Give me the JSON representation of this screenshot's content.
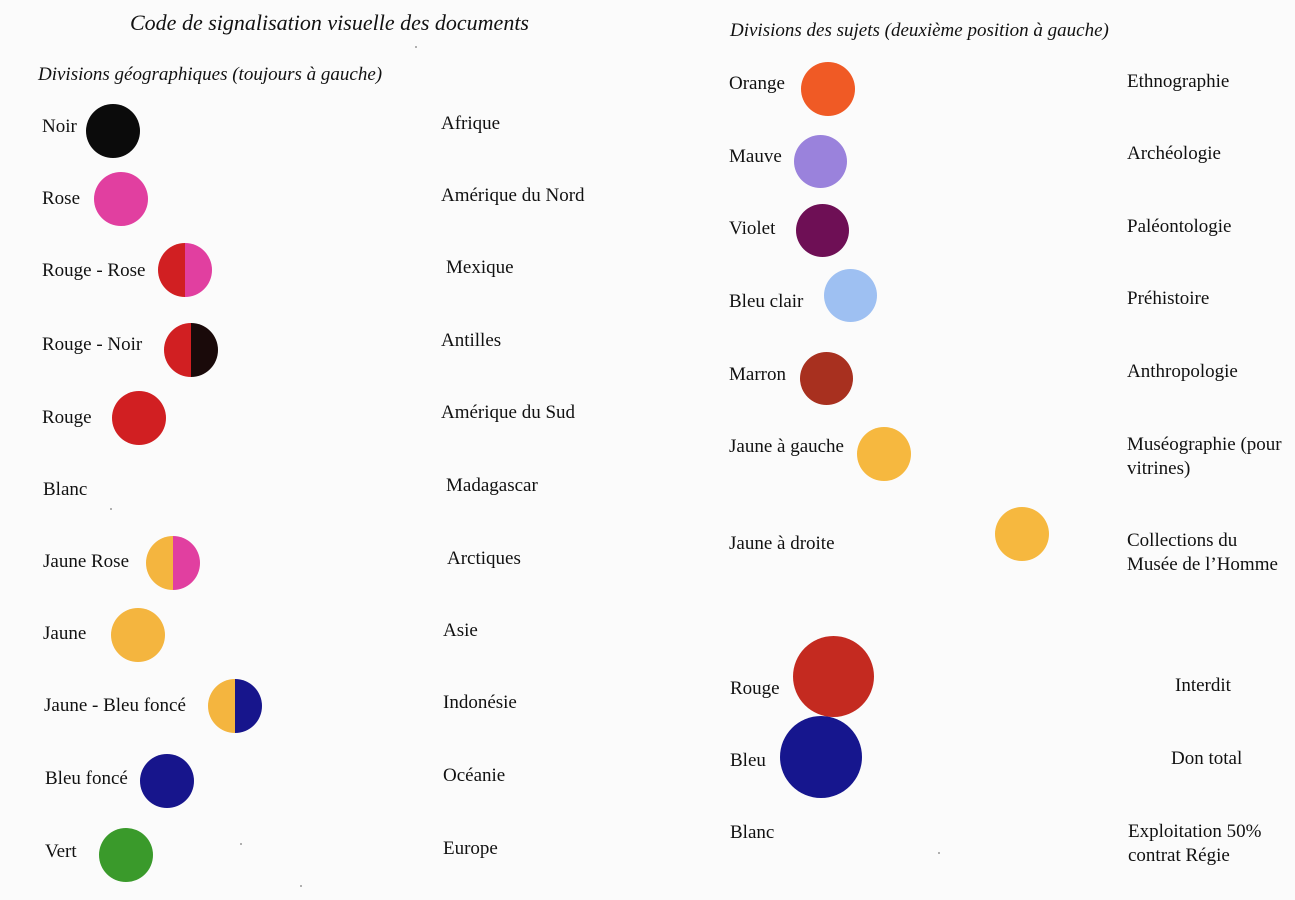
{
  "title": "Code de signalisation visuelle des documents",
  "geo": {
    "heading": "Divisions géographiques (toujours à gauche)",
    "rows": [
      {
        "label": "Noir",
        "meaning": "Afrique",
        "colors": [
          "#0b0b0b"
        ]
      },
      {
        "label": "Rose",
        "meaning": "Amérique du Nord",
        "colors": [
          "#e13fa0"
        ]
      },
      {
        "label": "Rouge - Rose",
        "meaning": "Mexique",
        "colors": [
          "#d11f22",
          "#e13fa0"
        ]
      },
      {
        "label": "Rouge - Noir",
        "meaning": "Antilles",
        "colors": [
          "#d11f22",
          "#1a0a0a"
        ]
      },
      {
        "label": "Rouge",
        "meaning": "Amérique du Sud",
        "colors": [
          "#d11f22"
        ]
      },
      {
        "label": "Blanc",
        "meaning": "Madagascar",
        "colors": []
      },
      {
        "label": "Jaune Rose",
        "meaning": "Arctiques",
        "colors": [
          "#f4b53f",
          "#e13fa0"
        ]
      },
      {
        "label": "Jaune",
        "meaning": "Asie",
        "colors": [
          "#f4b53f"
        ]
      },
      {
        "label": "Jaune - Bleu foncé",
        "meaning": "Indonésie",
        "colors": [
          "#f4b53f",
          "#17158c"
        ]
      },
      {
        "label": "Bleu foncé",
        "meaning": "Océanie",
        "colors": [
          "#17158c"
        ]
      },
      {
        "label": "Vert",
        "meaning": "Europe",
        "colors": [
          "#3a9a2b"
        ]
      }
    ]
  },
  "subj": {
    "heading": "Divisions des sujets (deuxième position à gauche)",
    "rows": [
      {
        "label": "Orange",
        "meaning": "Ethnographie",
        "colors": [
          "#f05a25"
        ]
      },
      {
        "label": "Mauve",
        "meaning": "Archéologie",
        "colors": [
          "#9a82dc"
        ]
      },
      {
        "label": "Violet",
        "meaning": "Paléontologie",
        "colors": [
          "#6e0f55"
        ]
      },
      {
        "label": "Bleu clair",
        "meaning": "Préhistoire",
        "colors": [
          "#9ec0f2"
        ]
      },
      {
        "label": "Marron",
        "meaning": "Anthropologie",
        "colors": [
          "#a8301f"
        ]
      },
      {
        "label": "Jaune à gauche",
        "meaning": "Muséographie (pour vitrines)",
        "colors": [
          "#f6b83f"
        ]
      },
      {
        "label": "Jaune à droite",
        "meaning": "Collections du Musée de l’Homme",
        "colors": [
          "#f6b83f"
        ]
      },
      {
        "label": "Rouge",
        "meaning": "Interdit",
        "colors": [
          "#c42a20"
        ]
      },
      {
        "label": "Bleu",
        "meaning": "Don total",
        "colors": [
          "#16168e"
        ]
      },
      {
        "label": "Blanc",
        "meaning": "Exploitation 50% contrat Régie",
        "colors": []
      }
    ]
  }
}
